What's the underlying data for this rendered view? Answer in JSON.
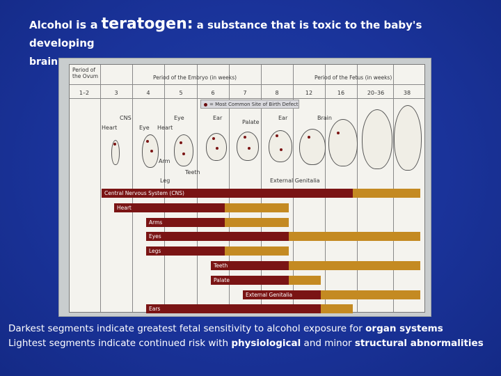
{
  "title": {
    "part1": "Alcohol",
    "part2": "is a",
    "part3": "teratogen:",
    "part4": "a substance that is toxic to the baby's developing",
    "part5": "brain."
  },
  "diagram": {
    "header_ovum": "Period of the Ovum",
    "header_embryo": "Period of the Embryo (in weeks)",
    "header_fetus": "Period of the Fetus (in weeks)",
    "weeks": [
      "1–2",
      "3",
      "4",
      "5",
      "6",
      "7",
      "8",
      "12",
      "16",
      "20–36",
      "38"
    ],
    "legend": "= Most Common Site of Birth Defect",
    "embryo_labels": {
      "cns": "CNS",
      "heart1": "Heart",
      "eye1": "Eye",
      "eye2": "Eye",
      "heart2": "Heart",
      "ear1": "Ear",
      "arm": "Arm",
      "palate": "Palate",
      "ear2": "Ear",
      "brain": "Brain",
      "teeth": "Teeth",
      "leg": "Leg",
      "external_genitalia": "External Genitalia"
    },
    "bars": [
      {
        "label": "Central Nervous System (CNS)",
        "dark_from_week": "3",
        "dark_to_week": "16",
        "light_to_week": "38"
      },
      {
        "label": "Heart",
        "dark_from_week": "3",
        "dark_to_week": "6",
        "light_to_week": "8"
      },
      {
        "label": "Arms",
        "dark_from_week": "4",
        "dark_to_week": "6",
        "light_to_week": "8"
      },
      {
        "label": "Eyes",
        "dark_from_week": "4",
        "dark_to_week": "8",
        "light_to_week": "38"
      },
      {
        "label": "Legs",
        "dark_from_week": "4",
        "dark_to_week": "6",
        "light_to_week": "8"
      },
      {
        "label": "Teeth",
        "dark_from_week": "6",
        "dark_to_week": "8",
        "light_to_week": "38"
      },
      {
        "label": "Palate",
        "dark_from_week": "6",
        "dark_to_week": "8",
        "light_to_week": "12"
      },
      {
        "label": "External Genitalia",
        "dark_from_week": "7",
        "dark_to_week": "12",
        "light_to_week": "38"
      },
      {
        "label": "Ears",
        "dark_from_week": "4",
        "dark_to_week": "12",
        "light_to_week": "16"
      }
    ],
    "colors": {
      "dark": "#7a1414",
      "light": "#c48a22"
    }
  },
  "caption": {
    "line1_a": "Darkest segments indicate greatest fetal sensitivity to alcohol exposure for ",
    "line1_b": "organ systems",
    "line2_a": "Lightest segments indicate continued risk with ",
    "line2_b": "physiological",
    "line2_c": " and minor ",
    "line2_d": "structural abnormalities"
  }
}
